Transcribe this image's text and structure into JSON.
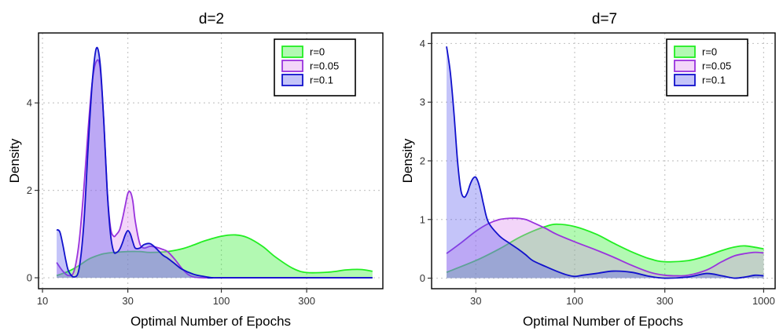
{
  "chart_data": [
    {
      "type": "area",
      "title": "d=2",
      "xlabel": "Optimal Number of Epochs",
      "ylabel": "Density",
      "x_scale": "log10",
      "xlim": [
        9.5,
        800
      ],
      "ylim": [
        -0.25,
        5.6
      ],
      "x_ticks": [
        10,
        30,
        100,
        300
      ],
      "x_tick_labels": [
        "10",
        "30",
        "100",
        "300"
      ],
      "y_ticks": [
        0,
        2,
        4
      ],
      "y_tick_labels": [
        "0",
        "2",
        "4"
      ],
      "legend_position": "top-right",
      "series": [
        {
          "name": "r=0",
          "line_color": "#22ee22",
          "fill_color": "#22ee22",
          "x": [
            12,
            14,
            16,
            18,
            20,
            22,
            25,
            30,
            35,
            40,
            50,
            60,
            70,
            80,
            100,
            120,
            140,
            170,
            200,
            250,
            300,
            400,
            500,
            600,
            700
          ],
          "y": [
            0.05,
            0.15,
            0.28,
            0.42,
            0.5,
            0.55,
            0.58,
            0.6,
            0.6,
            0.58,
            0.6,
            0.66,
            0.75,
            0.84,
            0.95,
            0.98,
            0.92,
            0.72,
            0.48,
            0.22,
            0.12,
            0.13,
            0.18,
            0.19,
            0.15
          ]
        },
        {
          "name": "r=0.05",
          "line_color": "#9933dd",
          "fill_color": "#dd88ee",
          "x": [
            12,
            13,
            14,
            15,
            16,
            17,
            18,
            19,
            20,
            21,
            22,
            23,
            24,
            25,
            26,
            27,
            28,
            29,
            30,
            31,
            32,
            33,
            35,
            37,
            40,
            43,
            47,
            50,
            55,
            60,
            65,
            70,
            80,
            100,
            700
          ],
          "y": [
            0.35,
            0.15,
            0.05,
            0.15,
            0.8,
            2.0,
            3.4,
            4.5,
            4.95,
            4.8,
            3.6,
            2.0,
            1.15,
            0.95,
            1.0,
            1.1,
            1.35,
            1.65,
            1.93,
            1.96,
            1.75,
            1.3,
            0.78,
            0.68,
            0.72,
            0.7,
            0.65,
            0.6,
            0.42,
            0.22,
            0.08,
            0.02,
            0.0,
            0.0,
            0.0
          ]
        },
        {
          "name": "r=0.1",
          "line_color": "#1111cc",
          "fill_color": "#5555ee",
          "x": [
            12,
            12.5,
            13,
            13.5,
            14,
            15,
            16,
            17,
            18,
            19,
            20,
            21,
            22,
            23,
            24,
            25,
            26,
            27,
            28,
            29,
            30,
            31,
            32,
            33,
            35,
            37,
            40,
            43,
            47,
            50,
            55,
            60,
            70,
            80,
            90,
            100,
            700
          ],
          "y": [
            1.1,
            1.05,
            0.75,
            0.4,
            0.15,
            0.02,
            0.2,
            1.2,
            3.0,
            4.5,
            5.25,
            4.9,
            3.6,
            2.0,
            1.0,
            0.6,
            0.58,
            0.65,
            0.8,
            0.98,
            1.08,
            1.0,
            0.82,
            0.68,
            0.68,
            0.76,
            0.78,
            0.68,
            0.52,
            0.45,
            0.32,
            0.2,
            0.08,
            0.03,
            0.0,
            0.0,
            0.0
          ]
        }
      ]
    },
    {
      "type": "area",
      "title": "d=7",
      "xlabel": "Optimal Number of Epochs",
      "ylabel": "Density",
      "x_scale": "log10",
      "xlim": [
        17.5,
        1150
      ],
      "ylim": [
        -0.18,
        4.18
      ],
      "x_ticks": [
        30,
        100,
        300,
        1000
      ],
      "x_tick_labels": [
        "30",
        "100",
        "300",
        "1000"
      ],
      "y_ticks": [
        0,
        1,
        2,
        3,
        4
      ],
      "y_tick_labels": [
        "0",
        "1",
        "2",
        "3",
        "4"
      ],
      "legend_position": "top-right",
      "series": [
        {
          "name": "r=0",
          "line_color": "#22ee22",
          "fill_color": "#22ee22",
          "x": [
            21,
            30,
            40,
            50,
            60,
            70,
            80,
            100,
            130,
            160,
            200,
            250,
            300,
            400,
            500,
            600,
            700,
            800,
            1000
          ],
          "y": [
            0.1,
            0.3,
            0.5,
            0.68,
            0.8,
            0.88,
            0.92,
            0.88,
            0.75,
            0.6,
            0.45,
            0.33,
            0.28,
            0.3,
            0.38,
            0.47,
            0.53,
            0.55,
            0.5
          ]
        },
        {
          "name": "r=0.05",
          "line_color": "#9933dd",
          "fill_color": "#dd88ee",
          "x": [
            21,
            25,
            30,
            35,
            40,
            45,
            50,
            55,
            60,
            70,
            80,
            100,
            130,
            160,
            200,
            250,
            300,
            350,
            400,
            500,
            600,
            700,
            800,
            900,
            1000
          ],
          "y": [
            0.42,
            0.6,
            0.8,
            0.93,
            1.0,
            1.02,
            1.02,
            1.0,
            0.95,
            0.85,
            0.75,
            0.62,
            0.48,
            0.36,
            0.22,
            0.1,
            0.05,
            0.04,
            0.05,
            0.14,
            0.28,
            0.38,
            0.42,
            0.44,
            0.43
          ]
        },
        {
          "name": "r=0.1",
          "line_color": "#1111cc",
          "fill_color": "#5555ee",
          "x": [
            21,
            22,
            23,
            24,
            25,
            26,
            27,
            28,
            29,
            30,
            31,
            32,
            33,
            35,
            40,
            45,
            50,
            55,
            60,
            70,
            80,
            90,
            100,
            110,
            130,
            160,
            200,
            250,
            300,
            400,
            500,
            600,
            700,
            800,
            900,
            1000
          ],
          "y": [
            3.95,
            3.5,
            2.8,
            2.0,
            1.5,
            1.38,
            1.45,
            1.6,
            1.7,
            1.72,
            1.62,
            1.45,
            1.25,
            0.95,
            0.72,
            0.6,
            0.5,
            0.4,
            0.3,
            0.2,
            0.12,
            0.06,
            0.03,
            0.05,
            0.08,
            0.12,
            0.1,
            0.03,
            0.0,
            0.02,
            0.08,
            0.04,
            0.0,
            0.02,
            0.05,
            0.04
          ]
        }
      ]
    }
  ]
}
